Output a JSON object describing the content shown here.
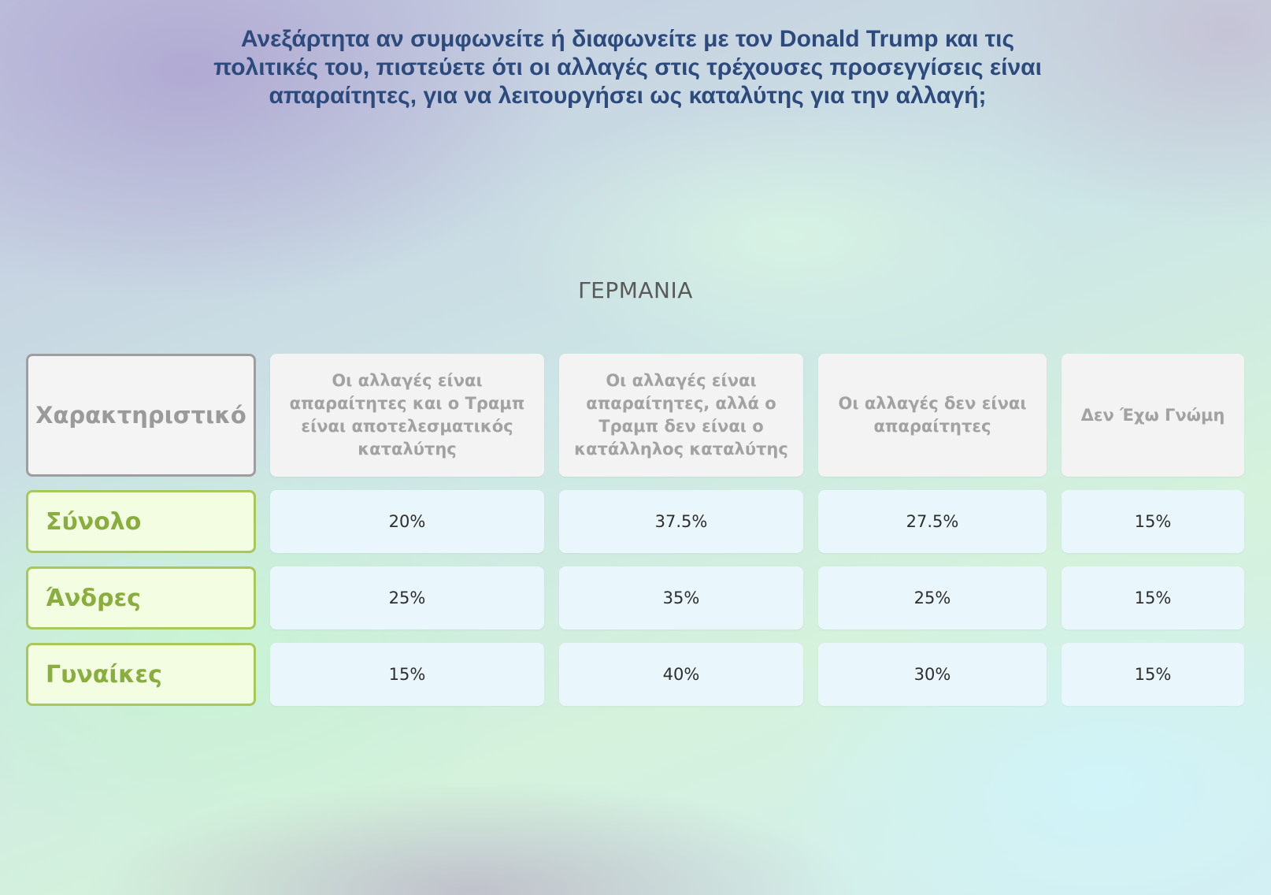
{
  "title": "Ανεξάρτητα αν συμφωνείτε ή διαφωνείτε με τον Donald Trump και τις πολιτικές του, πιστεύετε ότι οι αλλαγές στις τρέχουσες προσεγγίσεις είναι απαραίτητες, για να λειτουργήσει ως καταλύτης για την αλλαγή;",
  "country": "ΓΕΡΜΑΝΙΑ",
  "colors": {
    "title": "#2c4a7c",
    "row_label_text": "#8aae3e",
    "row_label_border": "#a9c85a",
    "row_label_bg": "#f3fde2",
    "value_bg": "#e9f6fb",
    "header_bg": "#f3f3f3",
    "header_text": "#a2a2a2"
  },
  "chart_data": {
    "type": "table",
    "title": "ΓΕΡΜΑΝΙΑ",
    "row_header": "Χαρακτηριστικό",
    "columns": [
      "Οι αλλαγές είναι απαραίτητες και ο Τραμπ είναι αποτελεσματικός καταλύτης",
      "Οι αλλαγές είναι απαραίτητες, αλλά ο Τραμπ δεν είναι ο κατάλληλος καταλύτης",
      "Οι αλλαγές δεν είναι απαραίτητες",
      "Δεν Έχω Γνώμη"
    ],
    "rows": [
      {
        "label": "Σύνολο",
        "values": [
          "20%",
          "37.5%",
          "27.5%",
          "15%"
        ]
      },
      {
        "label": "Άνδρες",
        "values": [
          "25%",
          "35%",
          "25%",
          "15%"
        ]
      },
      {
        "label": "Γυναίκες",
        "values": [
          "15%",
          "40%",
          "30%",
          "15%"
        ]
      }
    ]
  }
}
